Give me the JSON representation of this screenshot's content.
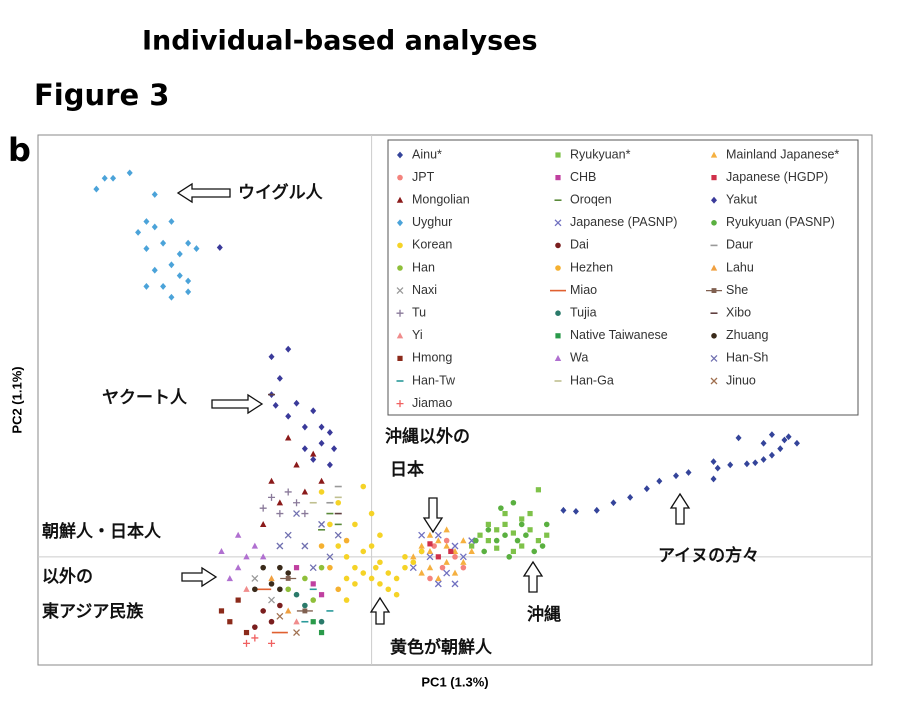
{
  "header": {
    "title": "Individual-based analyses",
    "figure": "Figure 3",
    "panel": "b"
  },
  "chart_data": {
    "type": "scatter",
    "xlabel": "PC1 (1.3%)",
    "ylabel": "PC2 (1.1%)",
    "xlim": [
      -40,
      60
    ],
    "ylim": [
      -10,
      39
    ],
    "zero_lines": true,
    "series": [
      {
        "name": "Ainu*",
        "color": "#34449a",
        "marker": "diamond",
        "x": [
          23,
          24.5,
          27,
          29,
          31,
          33,
          34.5,
          36.5,
          38,
          41,
          41.5,
          41,
          43,
          45,
          46,
          47,
          48,
          49,
          50,
          51,
          47,
          44,
          48,
          49.5
        ],
        "values": [
          4.3,
          4.2,
          4.3,
          5,
          5.5,
          6.3,
          7,
          7.5,
          7.8,
          7.2,
          8.2,
          8.8,
          8.5,
          8.6,
          8.7,
          9,
          9.4,
          10,
          11.1,
          10.5,
          10.5,
          11,
          11.3,
          10.8
        ]
      },
      {
        "name": "Ryukyuan*",
        "color": "#7fc24a",
        "marker": "square",
        "x": [
          12,
          13,
          14,
          15,
          16,
          17,
          18,
          19,
          20,
          21,
          17,
          15,
          18,
          19,
          20,
          16,
          14
        ],
        "values": [
          1,
          2,
          1.5,
          2.5,
          3,
          2.2,
          3.5,
          2.5,
          1.5,
          2,
          0.5,
          0.8,
          1,
          4,
          6.2,
          4,
          3
        ]
      },
      {
        "name": "Mainland Japanese*",
        "color": "#f5b040",
        "marker": "triangle",
        "x": [
          5,
          6,
          7,
          8,
          9,
          10,
          11,
          7,
          9,
          8,
          10,
          6,
          11,
          12,
          7,
          9
        ],
        "values": [
          0,
          1,
          0.5,
          1.5,
          1,
          0.5,
          1.5,
          -1,
          -0.5,
          -2,
          -1.5,
          -1.5,
          -0.5,
          0.5,
          2,
          2.5
        ]
      },
      {
        "name": "JPT",
        "color": "#f4837d",
        "marker": "circle",
        "x": [
          6,
          7.5,
          8.5,
          10,
          9,
          11,
          7
        ],
        "values": [
          0.5,
          1,
          -1,
          0,
          1.5,
          -1,
          -2
        ]
      },
      {
        "name": "CHB",
        "color": "#c040a0",
        "marker": "square",
        "x": [
          -9,
          -7,
          -6
        ],
        "values": [
          -1,
          -2.5,
          -3.5
        ]
      },
      {
        "name": "Japanese (HGDP)",
        "color": "#d0304a",
        "marker": "square",
        "x": [
          8,
          9.5,
          7
        ],
        "values": [
          0,
          0.5,
          1.2
        ]
      },
      {
        "name": "Mongolian",
        "color": "#8b1a1a",
        "marker": "triangle",
        "x": [
          -12,
          -10,
          -9,
          -7,
          -11,
          -8,
          -13,
          -6
        ],
        "values": [
          7,
          11,
          8.5,
          9.5,
          5,
          6,
          3,
          7
        ]
      },
      {
        "name": "Oroqen",
        "color": "#5a8a3a",
        "marker": "dash",
        "x": [
          -5,
          -6,
          -4
        ],
        "values": [
          4,
          2.5,
          3
        ]
      },
      {
        "name": "Yakut",
        "color": "#3a3a9a",
        "marker": "diamond",
        "x": [
          -12,
          -10,
          -11,
          -12,
          -11.5,
          -10,
          -9,
          -8,
          -7,
          -6,
          -5,
          -6,
          -8,
          -7,
          -5,
          -4.5,
          -18.2
        ],
        "values": [
          18.5,
          19.2,
          16.5,
          15,
          14,
          13,
          14.2,
          12,
          13.5,
          12,
          11.5,
          10.5,
          10,
          9,
          8.5,
          10,
          28.6
        ]
      },
      {
        "name": "Uyghur",
        "color": "#4ba3d9",
        "marker": "diamond",
        "x": [
          -33,
          -32,
          -31,
          -29,
          -26,
          -27,
          -28,
          -26,
          -24,
          -25,
          -27,
          -23,
          -24,
          -22,
          -26,
          -25,
          -23,
          -22,
          -27,
          -24,
          -22,
          -21
        ],
        "values": [
          34,
          35,
          35,
          35.5,
          33.5,
          31,
          30,
          30.5,
          31,
          29,
          28.5,
          28,
          27,
          29,
          26.5,
          25,
          26,
          25.5,
          25,
          24,
          24.5,
          28.5
        ]
      },
      {
        "name": "Japanese (PASNP)",
        "color": "#7070c0",
        "marker": "x",
        "x": [
          5,
          7,
          8,
          9,
          10,
          11,
          12,
          6,
          8,
          10
        ],
        "values": [
          -1,
          0,
          2,
          -1.5,
          1,
          0,
          1.5,
          2,
          -2.5,
          -2.5
        ]
      },
      {
        "name": "Ryukyuan (PASNP)",
        "color": "#5ab040",
        "marker": "circle",
        "x": [
          12.5,
          13.5,
          15,
          16,
          17.5,
          18.5,
          19.5,
          14,
          16.5,
          18,
          20.5,
          21,
          15.5,
          17
        ],
        "values": [
          1.5,
          0.5,
          1.5,
          2,
          1.5,
          2,
          0.5,
          2.5,
          0,
          3,
          1,
          3,
          4.5,
          5
        ]
      },
      {
        "name": "Korean",
        "color": "#f5d327",
        "marker": "circle",
        "x": [
          -4,
          -3,
          -2,
          -1,
          0,
          0.5,
          1,
          2,
          3,
          4,
          5,
          -2,
          -1,
          0,
          1,
          -3,
          -5,
          -4,
          -2,
          0,
          1,
          -6,
          -1,
          2,
          3,
          -3,
          4,
          6
        ],
        "values": [
          1,
          0,
          -1,
          -1.5,
          -2,
          -1,
          -2.5,
          -1.5,
          -2,
          -1,
          -0.5,
          -2.5,
          0.5,
          1,
          -0.5,
          -2,
          3,
          5,
          3,
          4,
          2,
          6,
          6.5,
          -3,
          -3.5,
          -4,
          0,
          0.5
        ]
      },
      {
        "name": "Dai",
        "color": "#7a1e1e",
        "marker": "circle",
        "x": [
          -13,
          -12,
          -11,
          -14
        ],
        "values": [
          -5,
          -6,
          -4.5,
          -6.5
        ]
      },
      {
        "name": "Daur",
        "color": "#999999",
        "marker": "dash",
        "x": [
          -5,
          -4
        ],
        "values": [
          5,
          6.5
        ]
      },
      {
        "name": "Han",
        "color": "#8fbf3a",
        "marker": "circle",
        "x": [
          -10,
          -8,
          -7,
          -6
        ],
        "values": [
          -3,
          -2,
          -4,
          -1
        ]
      },
      {
        "name": "Hezhen",
        "color": "#f5b030",
        "marker": "circle",
        "x": [
          -5,
          -4,
          -6,
          -3
        ],
        "values": [
          -1,
          -3,
          1,
          1.5
        ]
      },
      {
        "name": "Lahu",
        "color": "#f0a040",
        "marker": "triangle",
        "x": [
          -12,
          -10
        ],
        "values": [
          -2,
          -5
        ]
      },
      {
        "name": "Naxi",
        "color": "#999999",
        "marker": "x",
        "x": [
          -14,
          -12
        ],
        "values": [
          -2,
          -4
        ]
      },
      {
        "name": "Miao",
        "color": "#e06030",
        "marker": "line",
        "x": [
          -13,
          -11
        ],
        "values": [
          -3,
          -7
        ]
      },
      {
        "name": "She",
        "color": "#806050",
        "marker": "linedot",
        "x": [
          -10,
          -8
        ],
        "values": [
          -2,
          -5
        ]
      },
      {
        "name": "Tu",
        "color": "#8a7a9a",
        "marker": "plus",
        "x": [
          -12,
          -10,
          -11,
          -9,
          -13,
          -8
        ],
        "values": [
          5.5,
          6,
          4,
          5,
          4.5,
          4
        ]
      },
      {
        "name": "Tujia",
        "color": "#2a7a6a",
        "marker": "circle",
        "x": [
          -9,
          -8,
          -6
        ],
        "values": [
          -3.5,
          -4.5,
          -6
        ]
      },
      {
        "name": "Xibo",
        "color": "#604040",
        "marker": "dash",
        "x": [
          -4,
          -12
        ],
        "values": [
          4,
          15
        ]
      },
      {
        "name": "Yi",
        "color": "#f08c8c",
        "marker": "triangle",
        "x": [
          -15,
          -9
        ],
        "values": [
          -3,
          -6
        ]
      },
      {
        "name": "Native Taiwanese",
        "color": "#2a9a4a",
        "marker": "square",
        "x": [
          -7,
          -6
        ],
        "values": [
          -6,
          -7
        ]
      },
      {
        "name": "Zhuang",
        "color": "#3a2a1a",
        "marker": "circle",
        "x": [
          -13,
          -12,
          -11,
          -10,
          -14,
          -11
        ],
        "values": [
          -1,
          -2.5,
          -3,
          -1.5,
          -3,
          -1
        ]
      },
      {
        "name": "Hmong",
        "color": "#8b2a1a",
        "marker": "square",
        "x": [
          -16,
          -17,
          -15,
          -18
        ],
        "values": [
          -4,
          -6,
          -7,
          -5
        ]
      },
      {
        "name": "Wa",
        "color": "#b070d0",
        "marker": "triangle",
        "x": [
          -16,
          -15,
          -14,
          -17,
          -18,
          -16,
          -13
        ],
        "values": [
          -1,
          0,
          1,
          -2,
          0.5,
          2,
          0
        ]
      },
      {
        "name": "Han-Sh",
        "color": "#7070b0",
        "marker": "x",
        "x": [
          -10,
          -8,
          -6,
          -7,
          -9,
          -5,
          -4,
          -11
        ],
        "values": [
          2,
          1,
          3,
          -1,
          4,
          0,
          2,
          1
        ]
      },
      {
        "name": "Han-Tw",
        "color": "#2a9a9a",
        "marker": "dash",
        "x": [
          -7,
          -5,
          -8
        ],
        "values": [
          -3,
          -5,
          -6
        ]
      },
      {
        "name": "Han-Ga",
        "color": "#c0c090",
        "marker": "dash",
        "x": [
          -7,
          -4
        ],
        "values": [
          5,
          5.5
        ]
      },
      {
        "name": "Jinuo",
        "color": "#a07050",
        "marker": "x",
        "x": [
          -11,
          -9
        ],
        "values": [
          -5.5,
          -7
        ]
      },
      {
        "name": "Jiamao",
        "color": "#f06060",
        "marker": "plus",
        "x": [
          -14,
          -12,
          -15
        ],
        "values": [
          -7.5,
          -8,
          -8
        ]
      }
    ],
    "annotations": [
      "ウイグル人",
      "ヤクート人",
      "沖縄以外の",
      "日本",
      "朝鮮人・日本人",
      "以外の",
      "東アジア民族",
      "アイヌの方々",
      "沖縄",
      "黄色が朝鮮人"
    ]
  }
}
